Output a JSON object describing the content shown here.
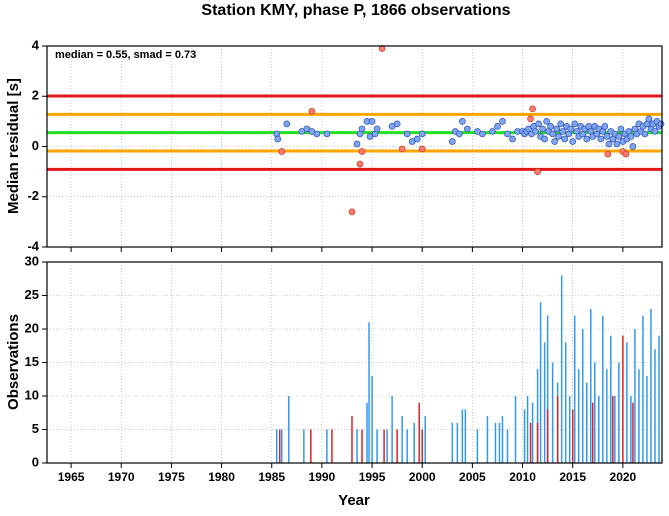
{
  "chart_data": [
    {
      "type": "scatter",
      "title": "Station KMY, phase P, 1866 observations",
      "annotation": "median = 0.55, smad = 0.73",
      "ylabel": "Median residual [s]",
      "xlim": [
        1962.6,
        2023.9
      ],
      "xticks": [
        1965,
        1970,
        1975,
        1980,
        1985,
        1990,
        1995,
        2000,
        2005,
        2010,
        2015,
        2020
      ],
      "ylim": [
        -4,
        4
      ],
      "yticks": [
        -4,
        -2,
        0,
        2,
        4
      ],
      "grid": true,
      "hlines": [
        {
          "value": 2.01,
          "color": "#e3161b"
        },
        {
          "value": -0.91,
          "color": "#e3161b"
        },
        {
          "value": 1.28,
          "color": "#ffa500"
        },
        {
          "value": -0.18,
          "color": "#ffa500"
        },
        {
          "value": 0.55,
          "color": "#22e022"
        }
      ],
      "series": [
        {
          "color": "#7ea6f0",
          "edgecolor": "#2f4fb0",
          "x": [
            1985.5,
            1985.6,
            1986.5,
            1988,
            1988.5,
            1989,
            1989.5,
            1990.5,
            1993.5,
            1993.8,
            1994,
            1994.5,
            1994.8,
            1995,
            1995.3,
            1995.5,
            1997,
            1997.5,
            1998.5,
            1999,
            1999.5,
            2000,
            2003,
            2003.3,
            2003.7,
            2004,
            2004.5,
            2005.5,
            2006,
            2007,
            2007.5,
            2008,
            2008.5,
            2009,
            2009.5,
            2010,
            2010.2,
            2010.4,
            2010.6,
            2010.9,
            2011.1,
            2011.3,
            2011.6,
            2011.8,
            2012.0,
            2012.2,
            2012.4,
            2012.6,
            2012.8,
            2013.0,
            2013.2,
            2013.4,
            2013.6,
            2013.8,
            2014.0,
            2014.2,
            2014.4,
            2014.6,
            2014.8,
            2015.0,
            2015.2,
            2015.4,
            2015.6,
            2015.8,
            2016.0,
            2016.2,
            2016.4,
            2016.6,
            2016.8,
            2017.0,
            2017.2,
            2017.4,
            2017.6,
            2017.8,
            2018.0,
            2018.2,
            2018.4,
            2018.6,
            2018.8,
            2019.0,
            2019.2,
            2019.4,
            2019.6,
            2019.8,
            2020.0,
            2020.2,
            2020.4,
            2020.6,
            2020.8,
            2021.0,
            2021.2,
            2021.4,
            2021.6,
            2021.8,
            2022.0,
            2022.2,
            2022.4,
            2022.6,
            2022.8,
            2023.0,
            2023.2,
            2023.4,
            2023.6,
            2023.8
          ],
          "values": [
            0.5,
            0.3,
            0.9,
            0.6,
            0.7,
            0.6,
            0.5,
            0.5,
            0.1,
            0.5,
            0.7,
            1.0,
            0.4,
            1.0,
            0.5,
            0.7,
            0.8,
            0.9,
            0.5,
            0.2,
            0.3,
            0.5,
            0.2,
            0.6,
            0.5,
            1.0,
            0.7,
            0.6,
            0.5,
            0.6,
            0.8,
            1.0,
            0.5,
            0.3,
            0.6,
            0.6,
            0.5,
            0.6,
            0.7,
            0.5,
            0.8,
            0.6,
            0.9,
            0.4,
            0.7,
            0.3,
            1.0,
            0.6,
            0.8,
            0.5,
            0.2,
            0.7,
            0.4,
            0.9,
            0.6,
            0.3,
            0.8,
            0.5,
            0.7,
            0.2,
            0.9,
            0.6,
            0.4,
            0.8,
            0.5,
            0.7,
            0.3,
            0.8,
            0.6,
            0.4,
            0.8,
            0.5,
            0.7,
            0.3,
            0.6,
            0.8,
            0.4,
            0.1,
            0.6,
            0.3,
            0.5,
            0.1,
            0.4,
            0.7,
            0.2,
            0.5,
            0.3,
            0.6,
            0.4,
            0.0,
            0.7,
            0.5,
            0.9,
            0.6,
            0.8,
            0.5,
            0.9,
            1.1,
            0.7,
            0.9,
            0.6,
            1.0,
            0.8,
            0.9
          ]
        },
        {
          "color": "#ff7a6a",
          "edgecolor": "#c23a2a",
          "x": [
            1986,
            1989,
            1993,
            1993.8,
            1994,
            1996,
            1998,
            2000,
            2010.8,
            2011,
            2011.5,
            2018.5,
            2020,
            2020.3
          ],
          "values": [
            -0.2,
            1.4,
            -2.6,
            -0.7,
            -0.2,
            3.9,
            -0.1,
            -0.1,
            1.1,
            1.5,
            -1.0,
            -0.3,
            -0.2,
            -0.3
          ]
        }
      ]
    },
    {
      "type": "bar",
      "xlabel": "Year",
      "ylabel": "Observations",
      "xlim": [
        1962.6,
        2023.9
      ],
      "xticks": [
        1965,
        1970,
        1975,
        1980,
        1985,
        1990,
        1995,
        2000,
        2005,
        2010,
        2015,
        2020
      ],
      "ylim": [
        0,
        30
      ],
      "yticks": [
        0,
        5,
        10,
        15,
        20,
        25,
        30
      ],
      "grid": true,
      "series": [
        {
          "color": "#3399ee",
          "x": [
            1985.5,
            1986,
            1986.7,
            1988.2,
            1990.5,
            1993.5,
            1994.5,
            1994.7,
            1995,
            1995.5,
            1996.5,
            1997,
            1998,
            1998.5,
            1999.2,
            2000.3,
            2003,
            2003.5,
            2004,
            2004.3,
            2005.5,
            2006.5,
            2007.3,
            2007.7,
            2008,
            2008.5,
            2009.3,
            2010.2,
            2010.5,
            2011,
            2011.5,
            2011.8,
            2012.2,
            2012.5,
            2013,
            2013.5,
            2013.9,
            2014.3,
            2014.7,
            2015.2,
            2015.6,
            2016,
            2016.4,
            2016.8,
            2017.2,
            2017.6,
            2018,
            2018.4,
            2018.8,
            2019.2,
            2019.6,
            2020.4,
            2020.8,
            2021.2,
            2021.6,
            2022,
            2022.4,
            2022.8,
            2023.2,
            2023.6
          ],
          "values": [
            5,
            5,
            10,
            5,
            5,
            5,
            9,
            21,
            13,
            5,
            5,
            10,
            7,
            5,
            6,
            7,
            6,
            6,
            8,
            8,
            5,
            7,
            6,
            6,
            7,
            5,
            10,
            8,
            10,
            9,
            14,
            24,
            18,
            22,
            15,
            12,
            28,
            18,
            10,
            22,
            14,
            20,
            12,
            23,
            15,
            10,
            22,
            14,
            19,
            10,
            15,
            18,
            10,
            20,
            14,
            22,
            13,
            23,
            17,
            19
          ]
        },
        {
          "color": "#dd2222",
          "x": [
            1985.8,
            1988.9,
            1991,
            1993,
            1994,
            1996.2,
            1997.5,
            1999.7,
            2000,
            2010.8,
            2011.5,
            2012.5,
            2013.5,
            2015,
            2017,
            2019,
            2020,
            2021
          ],
          "values": [
            5,
            5,
            5,
            7,
            5,
            5,
            5,
            9,
            5,
            6,
            6,
            8,
            10,
            8,
            9,
            10,
            19,
            9
          ]
        }
      ]
    }
  ]
}
